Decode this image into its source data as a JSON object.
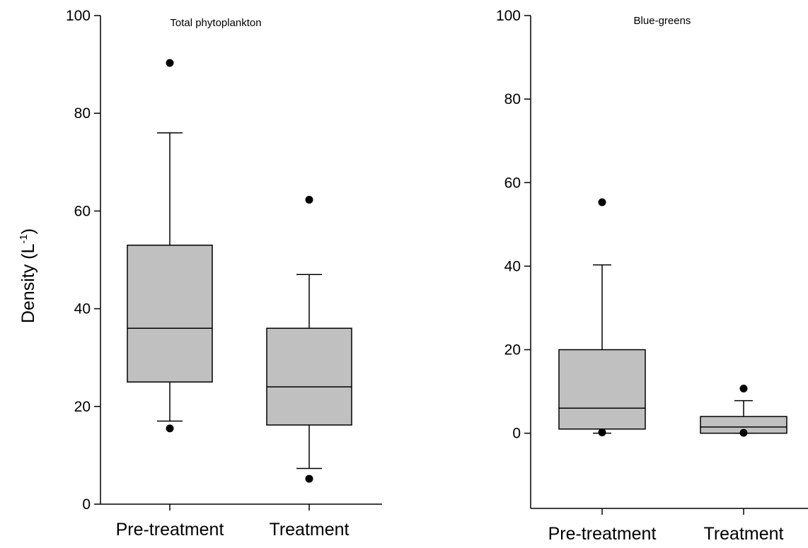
{
  "y_label": {
    "main": "Density (L",
    "sup": "-1",
    "close": ")"
  },
  "chart_data": [
    {
      "type": "box",
      "title": "Total phytoplankton",
      "ylabel": "Density (L-1)",
      "ylim": [
        0,
        100
      ],
      "yticks": [
        0,
        20,
        40,
        60,
        80,
        100
      ],
      "ytick_labels": [
        "0",
        "20",
        "40",
        "60",
        "80",
        "100"
      ],
      "categories": [
        "Pre-treatment",
        "Treatment"
      ],
      "boxes": [
        {
          "category": "Pre-treatment",
          "whisker_low": 17,
          "q1": 25,
          "median": 36,
          "q3": 53,
          "whisker_high": 76,
          "outliers": [
            15.5,
            90.3
          ]
        },
        {
          "category": "Treatment",
          "whisker_low": 7.3,
          "q1": 16.2,
          "median": 24,
          "q3": 36,
          "whisker_high": 47,
          "outliers": [
            5.2,
            62.3
          ]
        }
      ],
      "colors": {
        "box_fill": "#c0c0c0",
        "line": "#000000"
      }
    },
    {
      "type": "box",
      "title": "Blue-greens",
      "ylim": [
        -18,
        100
      ],
      "yticks": [
        0,
        20,
        40,
        60,
        80,
        100
      ],
      "ytick_labels": [
        "0",
        "20",
        "40",
        "60",
        "80",
        "100"
      ],
      "categories": [
        "Pre-treatment",
        "Treatment"
      ],
      "boxes": [
        {
          "category": "Pre-treatment",
          "whisker_low": 0,
          "q1": 1,
          "median": 6,
          "q3": 20,
          "whisker_high": 40.3,
          "outliers": [
            0.2,
            55.3
          ]
        },
        {
          "category": "Treatment",
          "whisker_low": 0,
          "q1": 0,
          "median": 1.5,
          "q3": 4,
          "whisker_high": 7.8,
          "outliers": [
            0.1,
            10.7
          ]
        }
      ],
      "colors": {
        "box_fill": "#c0c0c0",
        "line": "#000000"
      }
    }
  ]
}
